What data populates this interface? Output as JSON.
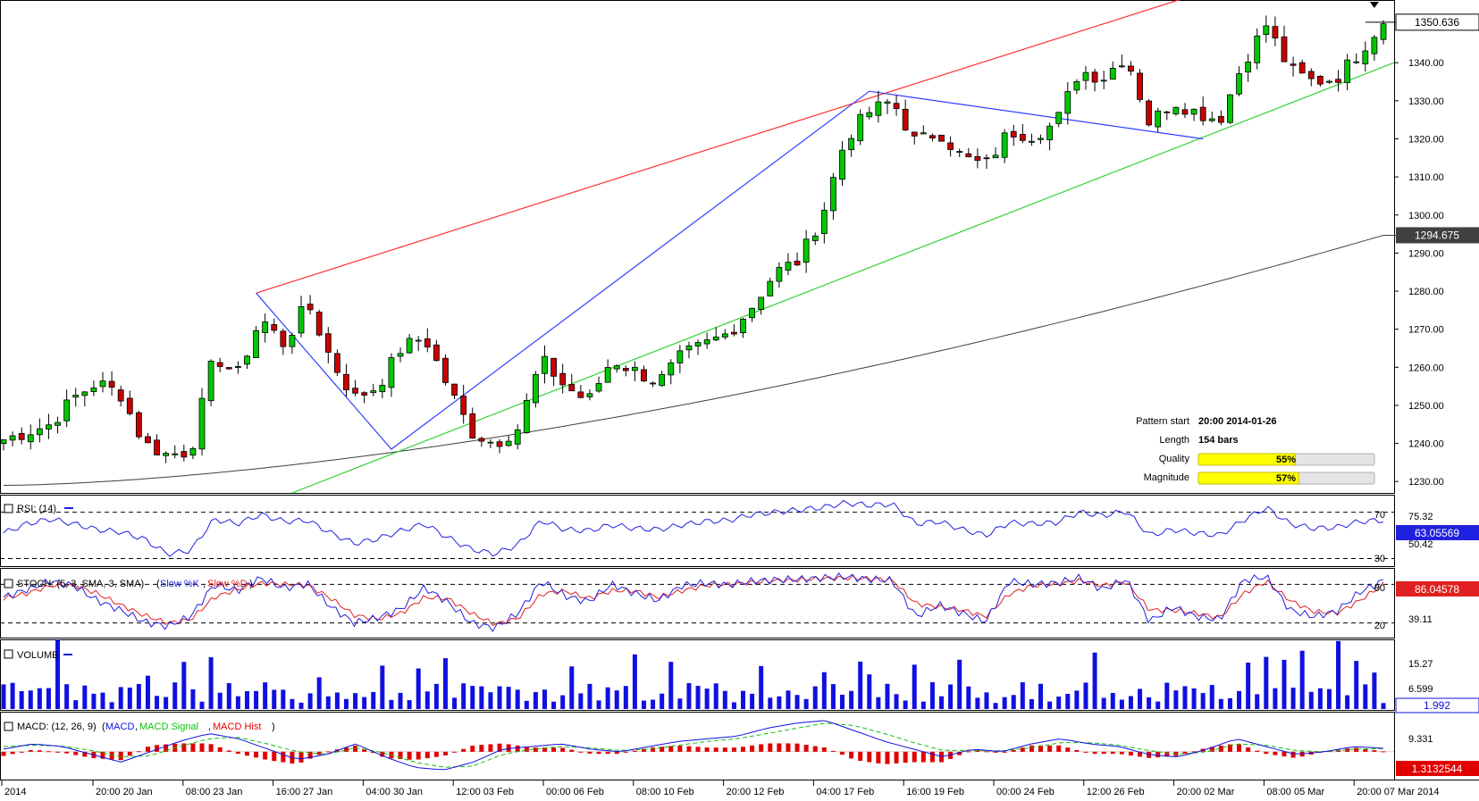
{
  "chart_data": {
    "type": "candlestick",
    "price_panel": {
      "yticks": [
        "1230.00",
        "1240.00",
        "1250.00",
        "1260.00",
        "1270.00",
        "1280.00",
        "1290.00",
        "1300.00",
        "1310.00",
        "1320.00",
        "1330.00",
        "1340.00"
      ],
      "ylim": [
        1227,
        1356
      ],
      "current_price": "1350.636",
      "ma_value": "1294.675",
      "pattern_info": [
        {
          "label": "Pattern start",
          "value": "20:00 2014-01-26"
        },
        {
          "label": "Length",
          "value": "154 bars"
        }
      ],
      "quality": {
        "label": "Quality",
        "text": "55%",
        "value": 55
      },
      "magnitude": {
        "label": "Magnitude",
        "text": "57%",
        "value": 57
      },
      "closes_approx": [
        1241,
        1243,
        1245,
        1252,
        1256,
        1253,
        1240,
        1237,
        1238,
        1263,
        1258,
        1273,
        1266,
        1277,
        1262,
        1252,
        1255,
        1265,
        1268,
        1255,
        1243,
        1240,
        1244,
        1262,
        1255,
        1251,
        1262,
        1259,
        1256,
        1263,
        1266,
        1269,
        1276,
        1285,
        1288,
        1300,
        1320,
        1327,
        1330,
        1319,
        1322,
        1315,
        1313,
        1322,
        1321,
        1324,
        1338,
        1336,
        1342,
        1324,
        1330,
        1327,
        1325,
        1340,
        1350,
        1338,
        1335,
        1336,
        1343,
        1351
      ]
    },
    "rsi": {
      "label": "RSI: (14)",
      "levels": [
        "70",
        "30"
      ],
      "yticks": [
        "75.32",
        "50.42"
      ],
      "current": "63.05569",
      "range": [
        25,
        82
      ],
      "values_approx": [
        52,
        60,
        64,
        60,
        55,
        53,
        47,
        34,
        37,
        64,
        60,
        68,
        62,
        63,
        52,
        43,
        47,
        54,
        60,
        48,
        38,
        34,
        42,
        63,
        55,
        54,
        59,
        56,
        55,
        59,
        62,
        63,
        68,
        70,
        72,
        74,
        78,
        76,
        77,
        60,
        62,
        55,
        50,
        61,
        60,
        61,
        70,
        67,
        71,
        50,
        55,
        52,
        50,
        63,
        74,
        60,
        56,
        57,
        62,
        63
      ]
    },
    "stoch": {
      "label": "STOCH: (5, 3, SMA, 3, SMA)",
      "series": [
        "Slow %K",
        "Slow %D"
      ],
      "levels": [
        "80",
        "20"
      ],
      "yticks": [
        "39.11"
      ],
      "current": "86.04578",
      "range": [
        0,
        100
      ],
      "k_approx": [
        60,
        72,
        85,
        78,
        55,
        40,
        22,
        15,
        30,
        80,
        70,
        90,
        74,
        81,
        45,
        20,
        28,
        42,
        75,
        52,
        20,
        12,
        35,
        85,
        62,
        53,
        80,
        66,
        55,
        78,
        82,
        79,
        85,
        87,
        88,
        90,
        92,
        88,
        86,
        30,
        48,
        35,
        22,
        85,
        80,
        82,
        90,
        72,
        88,
        22,
        45,
        30,
        25,
        86,
        92,
        40,
        30,
        38,
        68,
        86
      ],
      "d_approx": [
        58,
        66,
        78,
        79,
        66,
        48,
        32,
        20,
        25,
        60,
        72,
        82,
        80,
        79,
        58,
        32,
        26,
        35,
        60,
        58,
        35,
        18,
        27,
        65,
        70,
        58,
        70,
        70,
        60,
        70,
        78,
        80,
        83,
        86,
        87,
        89,
        90,
        89,
        87,
        50,
        45,
        40,
        30,
        65,
        78,
        80,
        86,
        78,
        84,
        40,
        40,
        35,
        28,
        65,
        85,
        55,
        38,
        35,
        55,
        80
      ]
    },
    "volume": {
      "label": "VOLUME",
      "yticks": [
        "15.27",
        "6.599"
      ],
      "current": "1.992",
      "range": [
        0,
        22
      ]
    },
    "macd": {
      "label": "MACD: (12, 26, 9)",
      "series": [
        "MACD",
        "MACD Signal",
        "MACD Hist"
      ],
      "yticks": [
        "9.331"
      ],
      "current": "1.3132544",
      "range": [
        -10,
        14
      ]
    },
    "xticks": [
      "2014",
      "20:00 20 Jan",
      "08:00 23 Jan",
      "16:00 27 Jan",
      "04:00 30 Jan",
      "12:00 03 Feb",
      "00:00 06 Feb",
      "08:00 10 Feb",
      "20:00 12 Feb",
      "04:00 17 Feb",
      "16:00 19 Feb",
      "00:00 24 Feb",
      "12:00 26 Feb",
      "20:00 02 Mar",
      "08:00 05 Mar",
      "20:00 07 Mar 2014"
    ]
  },
  "colors": {
    "up": "#00c800",
    "down": "#c80000",
    "wedge_upper": "#ff3030",
    "wedge_lower": "#30d030",
    "pattern": "#3040ff",
    "ma": "#404040",
    "rsi": "#2020e0",
    "stoch_k": "#2020e0",
    "stoch_d": "#e02020",
    "volume": "#1010e0",
    "macd": "#1010e0",
    "signal": "#10c010",
    "hist": "#e00000",
    "quality_fill": "#ffff00"
  }
}
